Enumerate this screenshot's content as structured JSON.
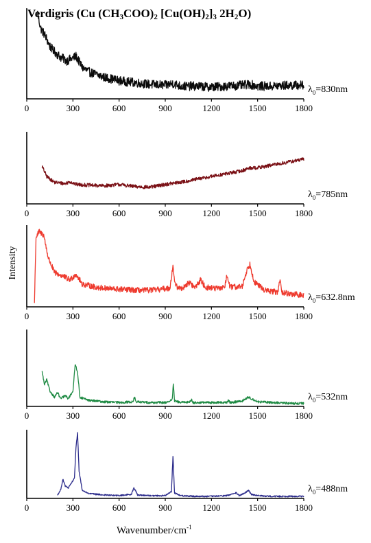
{
  "title": {
    "prefix": "Verdigris (Cu (CH",
    "sub1": "3",
    "mid1": "COO)",
    "sub2": "2",
    "mid2": " [Cu(OH)",
    "sub3": "2",
    "mid3": "]",
    "sub4": "3",
    "mid4": " 2H",
    "sub5": "2",
    "suffix": "O)"
  },
  "axis_labels": {
    "y": "Intensity",
    "x_base": "Wavenumber/cm",
    "x_sup": "-1"
  },
  "colors": {
    "830nm": "#0b0b0b",
    "785nm": "#7a1015",
    "632.8nm": "#ee3a2e",
    "532nm": "#1e8a43",
    "488nm": "#2a2a8a"
  },
  "chart_data": [
    {
      "type": "line",
      "series_label": "λ0=830nm",
      "laser_symbol": "λ",
      "laser_sub": "0",
      "laser_value": "=830nm",
      "xlim": [
        0,
        1800
      ],
      "x_ticks": [
        "0",
        "300",
        "600",
        "900",
        "1200",
        "1500",
        "1800"
      ],
      "points": [
        [
          70,
          0.95
        ],
        [
          90,
          0.78
        ],
        [
          120,
          0.7
        ],
        [
          150,
          0.58
        ],
        [
          180,
          0.52
        ],
        [
          220,
          0.46
        ],
        [
          260,
          0.42
        ],
        [
          300,
          0.45
        ],
        [
          320,
          0.47
        ],
        [
          360,
          0.35
        ],
        [
          400,
          0.3
        ],
        [
          500,
          0.24
        ],
        [
          600,
          0.2
        ],
        [
          700,
          0.18
        ],
        [
          800,
          0.16
        ],
        [
          900,
          0.15
        ],
        [
          950,
          0.17
        ],
        [
          1000,
          0.14
        ],
        [
          1100,
          0.14
        ],
        [
          1200,
          0.13
        ],
        [
          1300,
          0.14
        ],
        [
          1400,
          0.15
        ],
        [
          1450,
          0.16
        ],
        [
          1500,
          0.14
        ],
        [
          1600,
          0.14
        ],
        [
          1700,
          0.15
        ],
        [
          1800,
          0.15
        ]
      ],
      "noise": 0.05
    },
    {
      "type": "line",
      "series_label": "λ0=785nm",
      "laser_symbol": "λ",
      "laser_sub": "0",
      "laser_value": "=785nm",
      "xlim": [
        0,
        1800
      ],
      "x_ticks": [
        "0",
        "300",
        "600",
        "900",
        "1200",
        "1500",
        "1800"
      ],
      "points": [
        [
          100,
          0.52
        ],
        [
          130,
          0.38
        ],
        [
          180,
          0.3
        ],
        [
          250,
          0.28
        ],
        [
          280,
          0.31
        ],
        [
          320,
          0.27
        ],
        [
          400,
          0.26
        ],
        [
          500,
          0.25
        ],
        [
          600,
          0.27
        ],
        [
          700,
          0.24
        ],
        [
          800,
          0.23
        ],
        [
          900,
          0.27
        ],
        [
          1000,
          0.3
        ],
        [
          1100,
          0.34
        ],
        [
          1200,
          0.38
        ],
        [
          1300,
          0.42
        ],
        [
          1400,
          0.46
        ],
        [
          1450,
          0.5
        ],
        [
          1500,
          0.5
        ],
        [
          1600,
          0.54
        ],
        [
          1700,
          0.58
        ],
        [
          1800,
          0.62
        ]
      ],
      "noise": 0.025
    },
    {
      "type": "line",
      "series_label": "λ0=632.8nm",
      "laser_symbol": "λ",
      "laser_sub": "0",
      "laser_value": "=632.8nm",
      "xlim": [
        0,
        1800
      ],
      "x_ticks": [
        "0",
        "300",
        "600",
        "900",
        "1200",
        "1500",
        "1800"
      ],
      "points": [
        [
          50,
          0.05
        ],
        [
          60,
          0.85
        ],
        [
          80,
          0.92
        ],
        [
          110,
          0.88
        ],
        [
          140,
          0.6
        ],
        [
          180,
          0.42
        ],
        [
          230,
          0.38
        ],
        [
          280,
          0.33
        ],
        [
          320,
          0.4
        ],
        [
          360,
          0.28
        ],
        [
          450,
          0.24
        ],
        [
          550,
          0.22
        ],
        [
          650,
          0.21
        ],
        [
          750,
          0.2
        ],
        [
          850,
          0.21
        ],
        [
          930,
          0.23
        ],
        [
          950,
          0.5
        ],
        [
          965,
          0.26
        ],
        [
          1000,
          0.22
        ],
        [
          1060,
          0.3
        ],
        [
          1090,
          0.23
        ],
        [
          1130,
          0.33
        ],
        [
          1160,
          0.24
        ],
        [
          1250,
          0.22
        ],
        [
          1290,
          0.26
        ],
        [
          1300,
          0.4
        ],
        [
          1320,
          0.24
        ],
        [
          1400,
          0.25
        ],
        [
          1430,
          0.45
        ],
        [
          1450,
          0.52
        ],
        [
          1480,
          0.3
        ],
        [
          1550,
          0.2
        ],
        [
          1630,
          0.18
        ],
        [
          1645,
          0.32
        ],
        [
          1660,
          0.18
        ],
        [
          1700,
          0.16
        ],
        [
          1800,
          0.14
        ]
      ],
      "noise": 0.035
    },
    {
      "type": "line",
      "series_label": "λ0=532nm",
      "laser_symbol": "λ",
      "laser_sub": "0",
      "laser_value": "=532nm",
      "xlim": [
        0,
        1800
      ],
      "x_ticks": [
        "0",
        "300",
        "600",
        "900",
        "1200",
        "1500",
        "1800"
      ],
      "points": [
        [
          100,
          0.45
        ],
        [
          115,
          0.28
        ],
        [
          130,
          0.35
        ],
        [
          150,
          0.2
        ],
        [
          180,
          0.12
        ],
        [
          200,
          0.18
        ],
        [
          220,
          0.1
        ],
        [
          250,
          0.14
        ],
        [
          270,
          0.1
        ],
        [
          300,
          0.2
        ],
        [
          315,
          0.55
        ],
        [
          330,
          0.45
        ],
        [
          345,
          0.12
        ],
        [
          400,
          0.08
        ],
        [
          500,
          0.06
        ],
        [
          600,
          0.05
        ],
        [
          690,
          0.06
        ],
        [
          700,
          0.12
        ],
        [
          710,
          0.06
        ],
        [
          800,
          0.05
        ],
        [
          900,
          0.05
        ],
        [
          945,
          0.08
        ],
        [
          952,
          0.3
        ],
        [
          960,
          0.07
        ],
        [
          1000,
          0.05
        ],
        [
          1060,
          0.06
        ],
        [
          1070,
          0.09
        ],
        [
          1080,
          0.05
        ],
        [
          1200,
          0.05
        ],
        [
          1300,
          0.05
        ],
        [
          1310,
          0.08
        ],
        [
          1320,
          0.05
        ],
        [
          1400,
          0.07
        ],
        [
          1440,
          0.12
        ],
        [
          1460,
          0.1
        ],
        [
          1500,
          0.06
        ],
        [
          1600,
          0.05
        ],
        [
          1700,
          0.04
        ],
        [
          1800,
          0.04
        ]
      ],
      "noise": 0.015
    },
    {
      "type": "line",
      "series_label": "λ0=488nm",
      "laser_symbol": "λ",
      "laser_sub": "0",
      "laser_value": "=488nm",
      "xlim": [
        0,
        1800
      ],
      "x_ticks": [
        "0",
        "300",
        "600",
        "900",
        "1200",
        "1500",
        "1800"
      ],
      "points": [
        [
          200,
          0.05
        ],
        [
          220,
          0.12
        ],
        [
          235,
          0.28
        ],
        [
          250,
          0.18
        ],
        [
          270,
          0.15
        ],
        [
          290,
          0.22
        ],
        [
          310,
          0.3
        ],
        [
          320,
          0.75
        ],
        [
          330,
          0.95
        ],
        [
          340,
          0.4
        ],
        [
          360,
          0.12
        ],
        [
          400,
          0.07
        ],
        [
          500,
          0.05
        ],
        [
          600,
          0.04
        ],
        [
          680,
          0.06
        ],
        [
          695,
          0.15
        ],
        [
          705,
          0.12
        ],
        [
          720,
          0.05
        ],
        [
          800,
          0.04
        ],
        [
          900,
          0.04
        ],
        [
          940,
          0.1
        ],
        [
          950,
          0.62
        ],
        [
          960,
          0.08
        ],
        [
          1000,
          0.04
        ],
        [
          1100,
          0.03
        ],
        [
          1200,
          0.03
        ],
        [
          1300,
          0.04
        ],
        [
          1360,
          0.08
        ],
        [
          1380,
          0.04
        ],
        [
          1420,
          0.08
        ],
        [
          1440,
          0.12
        ],
        [
          1460,
          0.06
        ],
        [
          1500,
          0.04
        ],
        [
          1600,
          0.03
        ],
        [
          1700,
          0.03
        ],
        [
          1800,
          0.03
        ]
      ],
      "noise": 0.01
    }
  ]
}
